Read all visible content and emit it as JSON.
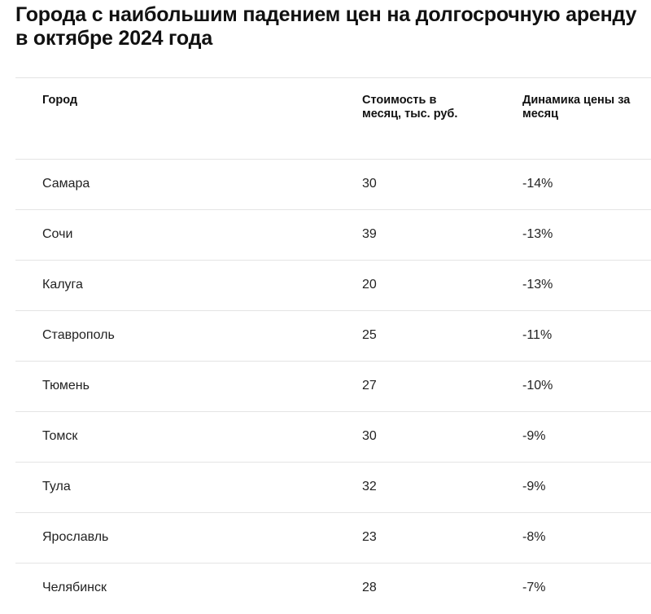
{
  "title": "Города с наибольшим падением цен на долгосрочную аренду в октябре 2024 года",
  "table": {
    "headers": {
      "city": "Город",
      "price": "Стоимость в месяц, тыс. руб.",
      "change": "Динамика цены за месяц"
    },
    "rows": [
      {
        "city": "Самара",
        "price": "30",
        "change": "-14%"
      },
      {
        "city": "Сочи",
        "price": "39",
        "change": "-13%"
      },
      {
        "city": "Калуга",
        "price": "20",
        "change": "-13%"
      },
      {
        "city": "Ставрополь",
        "price": "25",
        "change": "-11%"
      },
      {
        "city": "Тюмень",
        "price": "27",
        "change": "-10%"
      },
      {
        "city": "Томск",
        "price": "30",
        "change": "-9%"
      },
      {
        "city": "Тула",
        "price": "32",
        "change": "-9%"
      },
      {
        "city": "Ярославль",
        "price": "23",
        "change": "-8%"
      },
      {
        "city": "Челябинск",
        "price": "28",
        "change": "-7%"
      }
    ]
  }
}
